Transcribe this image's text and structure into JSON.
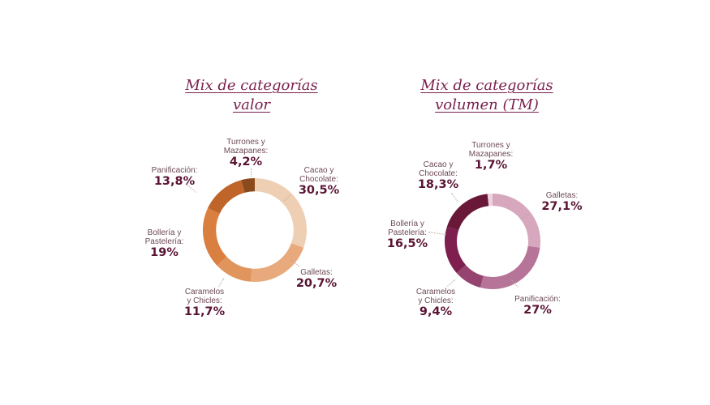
{
  "chart_data": [
    {
      "type": "pie",
      "variant": "donut",
      "title": "Mix de categorías valor",
      "title_lines": [
        "Mix de categorías",
        "valor"
      ],
      "start_angle": "12 o'clock",
      "direction": "clockwise",
      "categories": [
        "Cacao y Chocolate",
        "Galletas",
        "Caramelos y Chicles",
        "Bollería y Pastelería",
        "Panificación",
        "Turrones y Mazapanes"
      ],
      "values": [
        30.5,
        20.7,
        11.7,
        19,
        13.8,
        4.2
      ],
      "value_labels": [
        "30,5%",
        "20,7%",
        "11,7%",
        "19%",
        "13,8%",
        "4,2%"
      ],
      "unit": "%",
      "colors": [
        "#efcfb3",
        "#e8aa7c",
        "#e0955d",
        "#d97f3f",
        "#c0652a",
        "#8a4a1e"
      ]
    },
    {
      "type": "pie",
      "variant": "donut",
      "title": "Mix de categorías volumen (TM)",
      "title_lines": [
        "Mix de categorías",
        "volumen (TM)"
      ],
      "start_angle": "12 o'clock",
      "direction": "clockwise",
      "categories": [
        "Galletas",
        "Panificación",
        "Caramelos y Chicles",
        "Bollería y Pastelería",
        "Cacao y Chocolate",
        "Turrones y Mazapanes"
      ],
      "values": [
        27.1,
        27,
        9.4,
        16.5,
        18.3,
        1.7
      ],
      "value_labels": [
        "27,1%",
        "27%",
        "9,4%",
        "16,5%",
        "18,3%",
        "1,7%"
      ],
      "unit": "%",
      "colors": [
        "#d7a7bd",
        "#b77499",
        "#94446e",
        "#7e1f4f",
        "#6a1838",
        "#edd3de"
      ]
    }
  ],
  "charts": {
    "valor": {
      "title_line1": "Mix de categorías",
      "title_line2": "valor",
      "labels": {
        "cacao": {
          "name1": "Cacao y",
          "name2": "Chocolate:",
          "value": "30,5%"
        },
        "galletas": {
          "name1": "Galletas:",
          "value": "20,7%"
        },
        "caramelos": {
          "name1": "Caramelos",
          "name2": "y Chicles:",
          "value": "11,7%"
        },
        "bolleria": {
          "name1": "Bollería y",
          "name2": "Pastelería:",
          "value": "19%"
        },
        "panificacion": {
          "name1": "Panificación:",
          "value": "13,8%"
        },
        "turrones": {
          "name1": "Turrones y",
          "name2": "Mazapanes:",
          "value": "4,2%"
        }
      }
    },
    "volumen": {
      "title_line1": "Mix de categorías",
      "title_line2": "volumen (TM)",
      "labels": {
        "galletas": {
          "name1": "Galletas:",
          "value": "27,1%"
        },
        "panificacion": {
          "name1": "Panificación:",
          "value": "27%"
        },
        "caramelos": {
          "name1": "Caramelos",
          "name2": "y Chicles:",
          "value": "9,4%"
        },
        "bolleria": {
          "name1": "Bollería y",
          "name2": "Pastelería:",
          "value": "16,5%"
        },
        "cacao": {
          "name1": "Cacao y",
          "name2": "Chocolate:",
          "value": "18,3%"
        },
        "turrones": {
          "name1": "Turrones y",
          "name2": "Mazapanes:",
          "value": "1,7%"
        }
      }
    }
  }
}
